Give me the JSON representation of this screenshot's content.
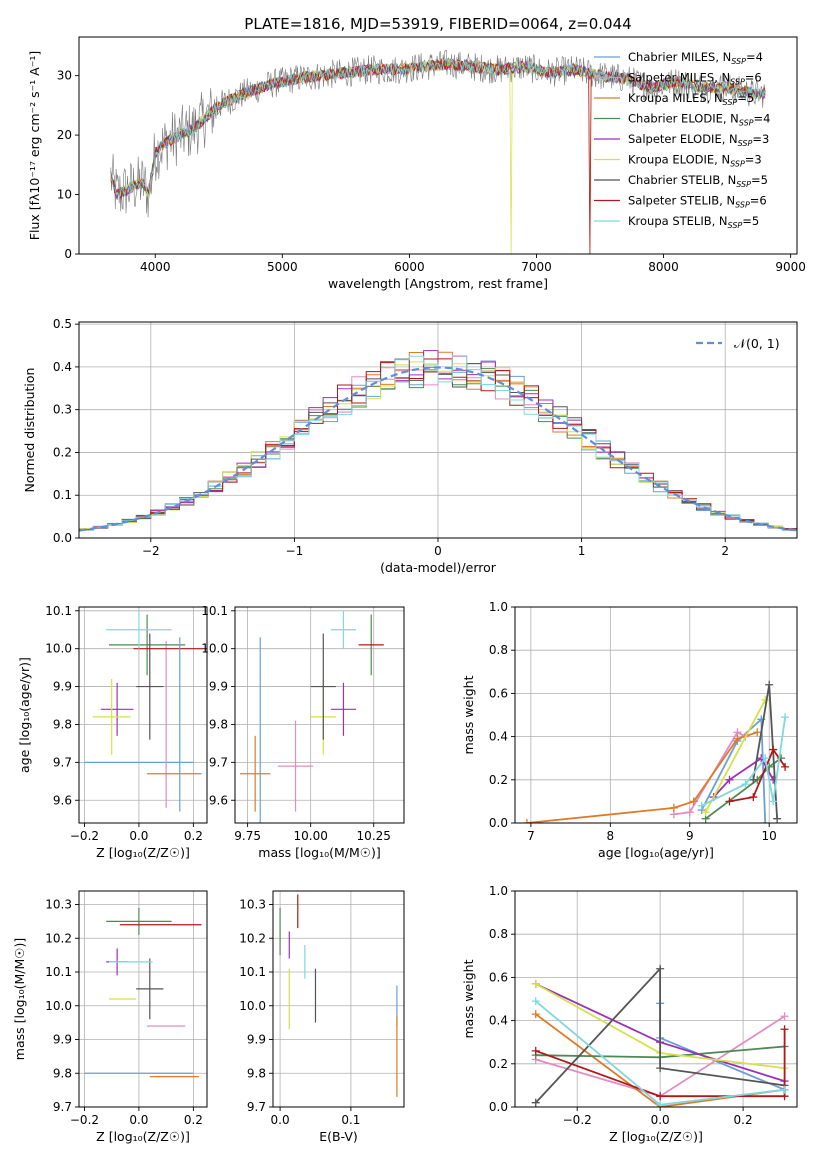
{
  "figure": {
    "title": "PLATE=1816, MJD=53919, FIBERID=0064, z=0.044"
  },
  "colors": {
    "Chabrier MILES": "#6a9fd6",
    "Salpeter MILES": "#e48bc1",
    "Kroupa MILES": "#e07a2a",
    "Chabrier ELODIE": "#4d8a52",
    "Salpeter ELODIE": "#9b30b8",
    "Kroupa ELODIE": "#d6e04a",
    "Chabrier STELIB": "#555555",
    "Salpeter STELIB": "#b01818",
    "Kroupa STELIB": "#7fd8de",
    "gaussian": "#5f8fd8",
    "grid": "#b0b0b0"
  },
  "chart_data": [
    {
      "id": "spectrum",
      "type": "line",
      "xlabel": "wavelength [Angstrom, rest frame]",
      "ylabel": "Flux [fλ10⁻¹⁷ erg cm⁻² s⁻¹ A⁻¹]",
      "xlim": [
        3400,
        9050
      ],
      "ylim": [
        0,
        36.5
      ],
      "xticks": [
        4000,
        5000,
        6000,
        7000,
        8000,
        9000
      ],
      "yticks": [
        0,
        10,
        20,
        30
      ],
      "grid": false,
      "legend_position": "top-right",
      "continuum": {
        "x": [
          3650,
          3700,
          3800,
          3900,
          3950,
          4000,
          4100,
          4200,
          4300,
          4400,
          4500,
          4700,
          4900,
          5100,
          5300,
          5500,
          5700,
          5900,
          6100,
          6300,
          6500,
          6700,
          6900,
          7100,
          7300,
          7500,
          7700,
          7900,
          8100,
          8300,
          8500,
          8700,
          8800
        ],
        "y": [
          13,
          10,
          11,
          12,
          10,
          17,
          19,
          20,
          21,
          23,
          25,
          27,
          28.5,
          29.5,
          30,
          30.5,
          31,
          31,
          31.5,
          32,
          31.5,
          31,
          31.5,
          30.5,
          31,
          30,
          29.5,
          28,
          29,
          28,
          28,
          27,
          27
        ]
      },
      "series": [
        {
          "name": "Chabrier MILES",
          "ssp": "4"
        },
        {
          "name": "Salpeter MILES",
          "ssp": "6"
        },
        {
          "name": "Kroupa MILES",
          "ssp": "5",
          "drop_at": 7420
        },
        {
          "name": "Chabrier ELODIE",
          "ssp": "4"
        },
        {
          "name": "Salpeter ELODIE",
          "ssp": "3"
        },
        {
          "name": "Kroupa ELODIE",
          "ssp": "3",
          "drop_at": 6800
        },
        {
          "name": "Chabrier STELIB",
          "ssp": "5"
        },
        {
          "name": "Salpeter STELIB",
          "ssp": "6",
          "drop_at": 7420
        },
        {
          "name": "Kroupa STELIB",
          "ssp": "5"
        }
      ]
    },
    {
      "id": "residuals",
      "type": "area",
      "xlabel": "(data-model)/error",
      "ylabel": "Normed distribution",
      "xlim": [
        -2.5,
        2.5
      ],
      "ylim": [
        0,
        0.505
      ],
      "xticks": [
        -2,
        -1,
        0,
        1,
        2
      ],
      "yticks": [
        0.0,
        0.1,
        0.2,
        0.3,
        0.4,
        0.5
      ],
      "grid": true,
      "legend_position": "top-right",
      "gaussian_label": "𝒩(0, 1)",
      "bin_width": 0.1
    },
    {
      "id": "age_vs_Z",
      "type": "scatter",
      "xlabel": "Z [log₁₀(Z/Z☉)]",
      "ylabel": "age [log₁₀(age/yr)]",
      "xlim": [
        -0.22,
        0.25
      ],
      "ylim": [
        9.54,
        10.11
      ],
      "xticks": [
        -0.2,
        0.0,
        0.2
      ],
      "yticks": [
        9.6,
        9.7,
        9.8,
        9.9,
        10.0,
        10.1
      ],
      "grid": true,
      "points": [
        {
          "s": "Chabrier MILES",
          "x": 0.0,
          "y": 9.7,
          "xerr": 0.2,
          "yerr": 0.0
        },
        {
          "s": "Salpeter MILES",
          "x": 0.1,
          "y": 9.8,
          "xerr": 0.0,
          "yerr": 0.22
        },
        {
          "s": "Kroupa MILES",
          "x": 0.13,
          "y": 9.67,
          "xerr": 0.1,
          "yerr": 0.0
        },
        {
          "s": "Chabrier ELODIE",
          "x": 0.03,
          "y": 10.01,
          "xerr": 0.14,
          "yerr": 0.08
        },
        {
          "s": "Salpeter ELODIE",
          "x": -0.08,
          "y": 9.84,
          "xerr": 0.06,
          "yerr": 0.07
        },
        {
          "s": "Kroupa ELODIE",
          "x": -0.1,
          "y": 9.82,
          "xerr": 0.07,
          "yerr": 0.1
        },
        {
          "s": "Chabrier STELIB",
          "x": 0.04,
          "y": 9.9,
          "xerr": 0.05,
          "yerr": 0.14
        },
        {
          "s": "Salpeter STELIB",
          "x": 0.15,
          "y": 10.0,
          "xerr": 0.17,
          "yerr": 0.0
        },
        {
          "s": "Kroupa STELIB",
          "x": 0.0,
          "y": 10.05,
          "xerr": 0.12,
          "yerr": 0.05
        },
        {
          "s": "Chabrier MILES",
          "x": 0.15,
          "y": 9.8,
          "xerr": 0.0,
          "yerr": 0.23
        }
      ]
    },
    {
      "id": "age_vs_mass",
      "type": "scatter",
      "xlabel": "mass [log₁₀(M/M☉)]",
      "xlim": [
        9.7,
        10.37
      ],
      "ylim": [
        9.54,
        10.11
      ],
      "xticks": [
        9.75,
        10.0,
        10.25
      ],
      "yticks": [
        9.6,
        9.7,
        9.8,
        9.9,
        10.0,
        10.1
      ],
      "grid": true,
      "points": [
        {
          "s": "Chabrier MILES",
          "x": 9.8,
          "y": 9.7,
          "xerr": 0.0,
          "yerr": 0.33
        },
        {
          "s": "Salpeter MILES",
          "x": 9.94,
          "y": 9.69,
          "xerr": 0.07,
          "yerr": 0.12
        },
        {
          "s": "Kroupa MILES",
          "x": 9.78,
          "y": 9.67,
          "xerr": 0.06,
          "yerr": 0.1
        },
        {
          "s": "Chabrier ELODIE",
          "x": 10.24,
          "y": 10.01,
          "xerr": 0.0,
          "yerr": 0.08
        },
        {
          "s": "Salpeter ELODIE",
          "x": 10.13,
          "y": 9.84,
          "xerr": 0.05,
          "yerr": 0.07
        },
        {
          "s": "Kroupa ELODIE",
          "x": 10.05,
          "y": 9.82,
          "xerr": 0.05,
          "yerr": 0.1
        },
        {
          "s": "Chabrier STELIB",
          "x": 10.05,
          "y": 9.9,
          "xerr": 0.05,
          "yerr": 0.14
        },
        {
          "s": "Salpeter STELIB",
          "x": 10.24,
          "y": 10.01,
          "xerr": 0.05,
          "yerr": 0.0
        },
        {
          "s": "Kroupa STELIB",
          "x": 10.13,
          "y": 10.05,
          "xerr": 0.05,
          "yerr": 0.05
        }
      ]
    },
    {
      "id": "weight_vs_age",
      "type": "line",
      "xlabel": "age [log₁₀(age/yr)]",
      "ylabel": "mass weight",
      "xlim": [
        6.8,
        10.35
      ],
      "ylim": [
        0,
        1.0
      ],
      "xticks": [
        7,
        8,
        9,
        10
      ],
      "yticks": [
        0.0,
        0.2,
        0.4,
        0.6,
        0.8,
        1.0
      ],
      "grid": true,
      "lines": [
        {
          "s": "Chabrier MILES",
          "x": [
            9.15,
            9.6,
            9.9,
            9.95
          ],
          "y": [
            0.06,
            0.38,
            0.48,
            0.0
          ]
        },
        {
          "s": "Salpeter MILES",
          "x": [
            8.8,
            9.0,
            9.6,
            9.7
          ],
          "y": [
            0.04,
            0.05,
            0.42,
            0.4
          ]
        },
        {
          "s": "Kroupa MILES",
          "x": [
            6.95,
            8.8,
            9.05,
            9.6,
            9.85
          ],
          "y": [
            0.0,
            0.07,
            0.1,
            0.39,
            0.42
          ]
        },
        {
          "s": "Chabrier ELODIE",
          "x": [
            9.2,
            9.85,
            10.0,
            10.15
          ],
          "y": [
            0.02,
            0.2,
            0.26,
            0.3
          ]
        },
        {
          "s": "Salpeter ELODIE",
          "x": [
            9.3,
            9.5,
            9.9,
            10.05
          ],
          "y": [
            0.12,
            0.2,
            0.3,
            0.2
          ]
        },
        {
          "s": "Kroupa ELODIE",
          "x": [
            9.2,
            9.95
          ],
          "y": [
            0.05,
            0.57
          ]
        },
        {
          "s": "Chabrier STELIB",
          "x": [
            9.8,
            10.0,
            10.1
          ],
          "y": [
            0.2,
            0.64,
            0.02
          ]
        },
        {
          "s": "Salpeter STELIB",
          "x": [
            9.5,
            9.8,
            10.05,
            10.2
          ],
          "y": [
            0.1,
            0.12,
            0.34,
            0.26
          ]
        },
        {
          "s": "Kroupa STELIB",
          "x": [
            9.15,
            9.7,
            9.95,
            10.05,
            10.2
          ],
          "y": [
            0.08,
            0.18,
            0.3,
            0.1,
            0.49
          ]
        }
      ]
    },
    {
      "id": "mass_vs_Z",
      "type": "scatter",
      "xlabel": "Z [log₁₀(Z/Z☉)]",
      "ylabel": "mass [log₁₀(M/M☉)]",
      "xlim": [
        -0.22,
        0.25
      ],
      "ylim": [
        9.7,
        10.34
      ],
      "xticks": [
        -0.2,
        0.0,
        0.2
      ],
      "yticks": [
        9.7,
        9.8,
        9.9,
        10.0,
        10.1,
        10.2,
        10.3
      ],
      "grid": true,
      "points": [
        {
          "s": "Chabrier MILES",
          "x": 0.0,
          "y": 9.8,
          "xerr": 0.2,
          "yerr": 0.0
        },
        {
          "s": "Salpeter MILES",
          "x": 0.1,
          "y": 9.94,
          "xerr": 0.07,
          "yerr": 0.0
        },
        {
          "s": "Kroupa MILES",
          "x": 0.13,
          "y": 9.79,
          "xerr": 0.09,
          "yerr": 0.0
        },
        {
          "s": "Chabrier ELODIE",
          "x": 0.0,
          "y": 10.25,
          "xerr": 0.12,
          "yerr": 0.04
        },
        {
          "s": "Salpeter ELODIE",
          "x": -0.08,
          "y": 10.13,
          "xerr": 0.04,
          "yerr": 0.04
        },
        {
          "s": "Kroupa ELODIE",
          "x": -0.06,
          "y": 10.02,
          "xerr": 0.05,
          "yerr": 0.0
        },
        {
          "s": "Chabrier STELIB",
          "x": 0.04,
          "y": 10.05,
          "xerr": 0.05,
          "yerr": 0.09
        },
        {
          "s": "Salpeter STELIB",
          "x": 0.08,
          "y": 10.24,
          "xerr": 0.15,
          "yerr": 0.0
        },
        {
          "s": "Kroupa STELIB",
          "x": -0.03,
          "y": 10.13,
          "xerr": 0.08,
          "yerr": 0.0
        }
      ]
    },
    {
      "id": "mass_vs_ebv",
      "type": "scatter",
      "xlabel": "E(B-V)",
      "xlim": [
        -0.01,
        0.175
      ],
      "ylim": [
        9.7,
        10.34
      ],
      "xticks": [
        0.0,
        0.1
      ],
      "yticks": [
        9.7,
        9.8,
        9.9,
        10.0,
        10.1,
        10.2,
        10.3
      ],
      "grid": true,
      "points": [
        {
          "s": "Chabrier MILES",
          "x": 0.165,
          "y": 10.0,
          "xerr": 0.0,
          "yerr": 0.06
        },
        {
          "s": "Kroupa MILES",
          "x": 0.165,
          "y": 9.85,
          "xerr": 0.0,
          "yerr": 0.12
        },
        {
          "s": "Chabrier ELODIE",
          "x": 0.0,
          "y": 10.22,
          "xerr": 0.0,
          "yerr": 0.07
        },
        {
          "s": "Salpeter ELODIE",
          "x": 0.013,
          "y": 10.18,
          "xerr": 0.0,
          "yerr": 0.04
        },
        {
          "s": "Kroupa ELODIE",
          "x": 0.013,
          "y": 10.02,
          "xerr": 0.0,
          "yerr": 0.09
        },
        {
          "s": "Chabrier STELIB",
          "x": 0.05,
          "y": 10.03,
          "xerr": 0.0,
          "yerr": 0.08
        },
        {
          "s": "Salpeter STELIB",
          "x": 0.025,
          "y": 10.28,
          "xerr": 0.0,
          "yerr": 0.05
        },
        {
          "s": "Kroupa STELIB",
          "x": 0.035,
          "y": 10.13,
          "xerr": 0.0,
          "yerr": 0.05
        }
      ]
    },
    {
      "id": "weight_vs_Z",
      "type": "line",
      "xlabel": "Z [log₁₀(Z/Z☉)]",
      "ylabel": "mass weight",
      "xlim": [
        -0.35,
        0.33
      ],
      "ylim": [
        0,
        1.0
      ],
      "xticks": [
        -0.2,
        0.0,
        0.2
      ],
      "yticks": [
        0.0,
        0.2,
        0.4,
        0.6,
        0.8,
        1.0
      ],
      "grid": true,
      "lines": [
        {
          "s": "Chabrier MILES",
          "x": [
            0.0,
            0.0,
            0.3
          ],
          "y": [
            0.48,
            0.32,
            0.08
          ]
        },
        {
          "s": "Salpeter MILES",
          "x": [
            -0.3,
            0.0,
            0.3
          ],
          "y": [
            0.22,
            0.05,
            0.42
          ]
        },
        {
          "s": "Kroupa MILES",
          "x": [
            -0.3,
            0.0,
            0.3
          ],
          "y": [
            0.43,
            0.0,
            0.08
          ]
        },
        {
          "s": "Chabrier ELODIE",
          "x": [
            -0.3,
            0.0,
            0.3
          ],
          "y": [
            0.24,
            0.23,
            0.28
          ]
        },
        {
          "s": "Salpeter ELODIE",
          "x": [
            -0.3,
            0.0,
            0.3
          ],
          "y": [
            0.57,
            0.3,
            0.12
          ]
        },
        {
          "s": "Kroupa ELODIE",
          "x": [
            -0.3,
            0.0,
            0.3
          ],
          "y": [
            0.57,
            0.25,
            0.18
          ]
        },
        {
          "s": "Chabrier STELIB",
          "x": [
            -0.3,
            0.0,
            0.0,
            0.3
          ],
          "y": [
            0.02,
            0.64,
            0.18,
            0.1
          ]
        },
        {
          "s": "Salpeter STELIB",
          "x": [
            -0.3,
            0.0,
            0.3,
            0.3
          ],
          "y": [
            0.26,
            0.05,
            0.05,
            0.36
          ]
        },
        {
          "s": "Kroupa STELIB",
          "x": [
            -0.3,
            0.0,
            0.3
          ],
          "y": [
            0.49,
            0.01,
            0.08
          ]
        }
      ]
    }
  ]
}
